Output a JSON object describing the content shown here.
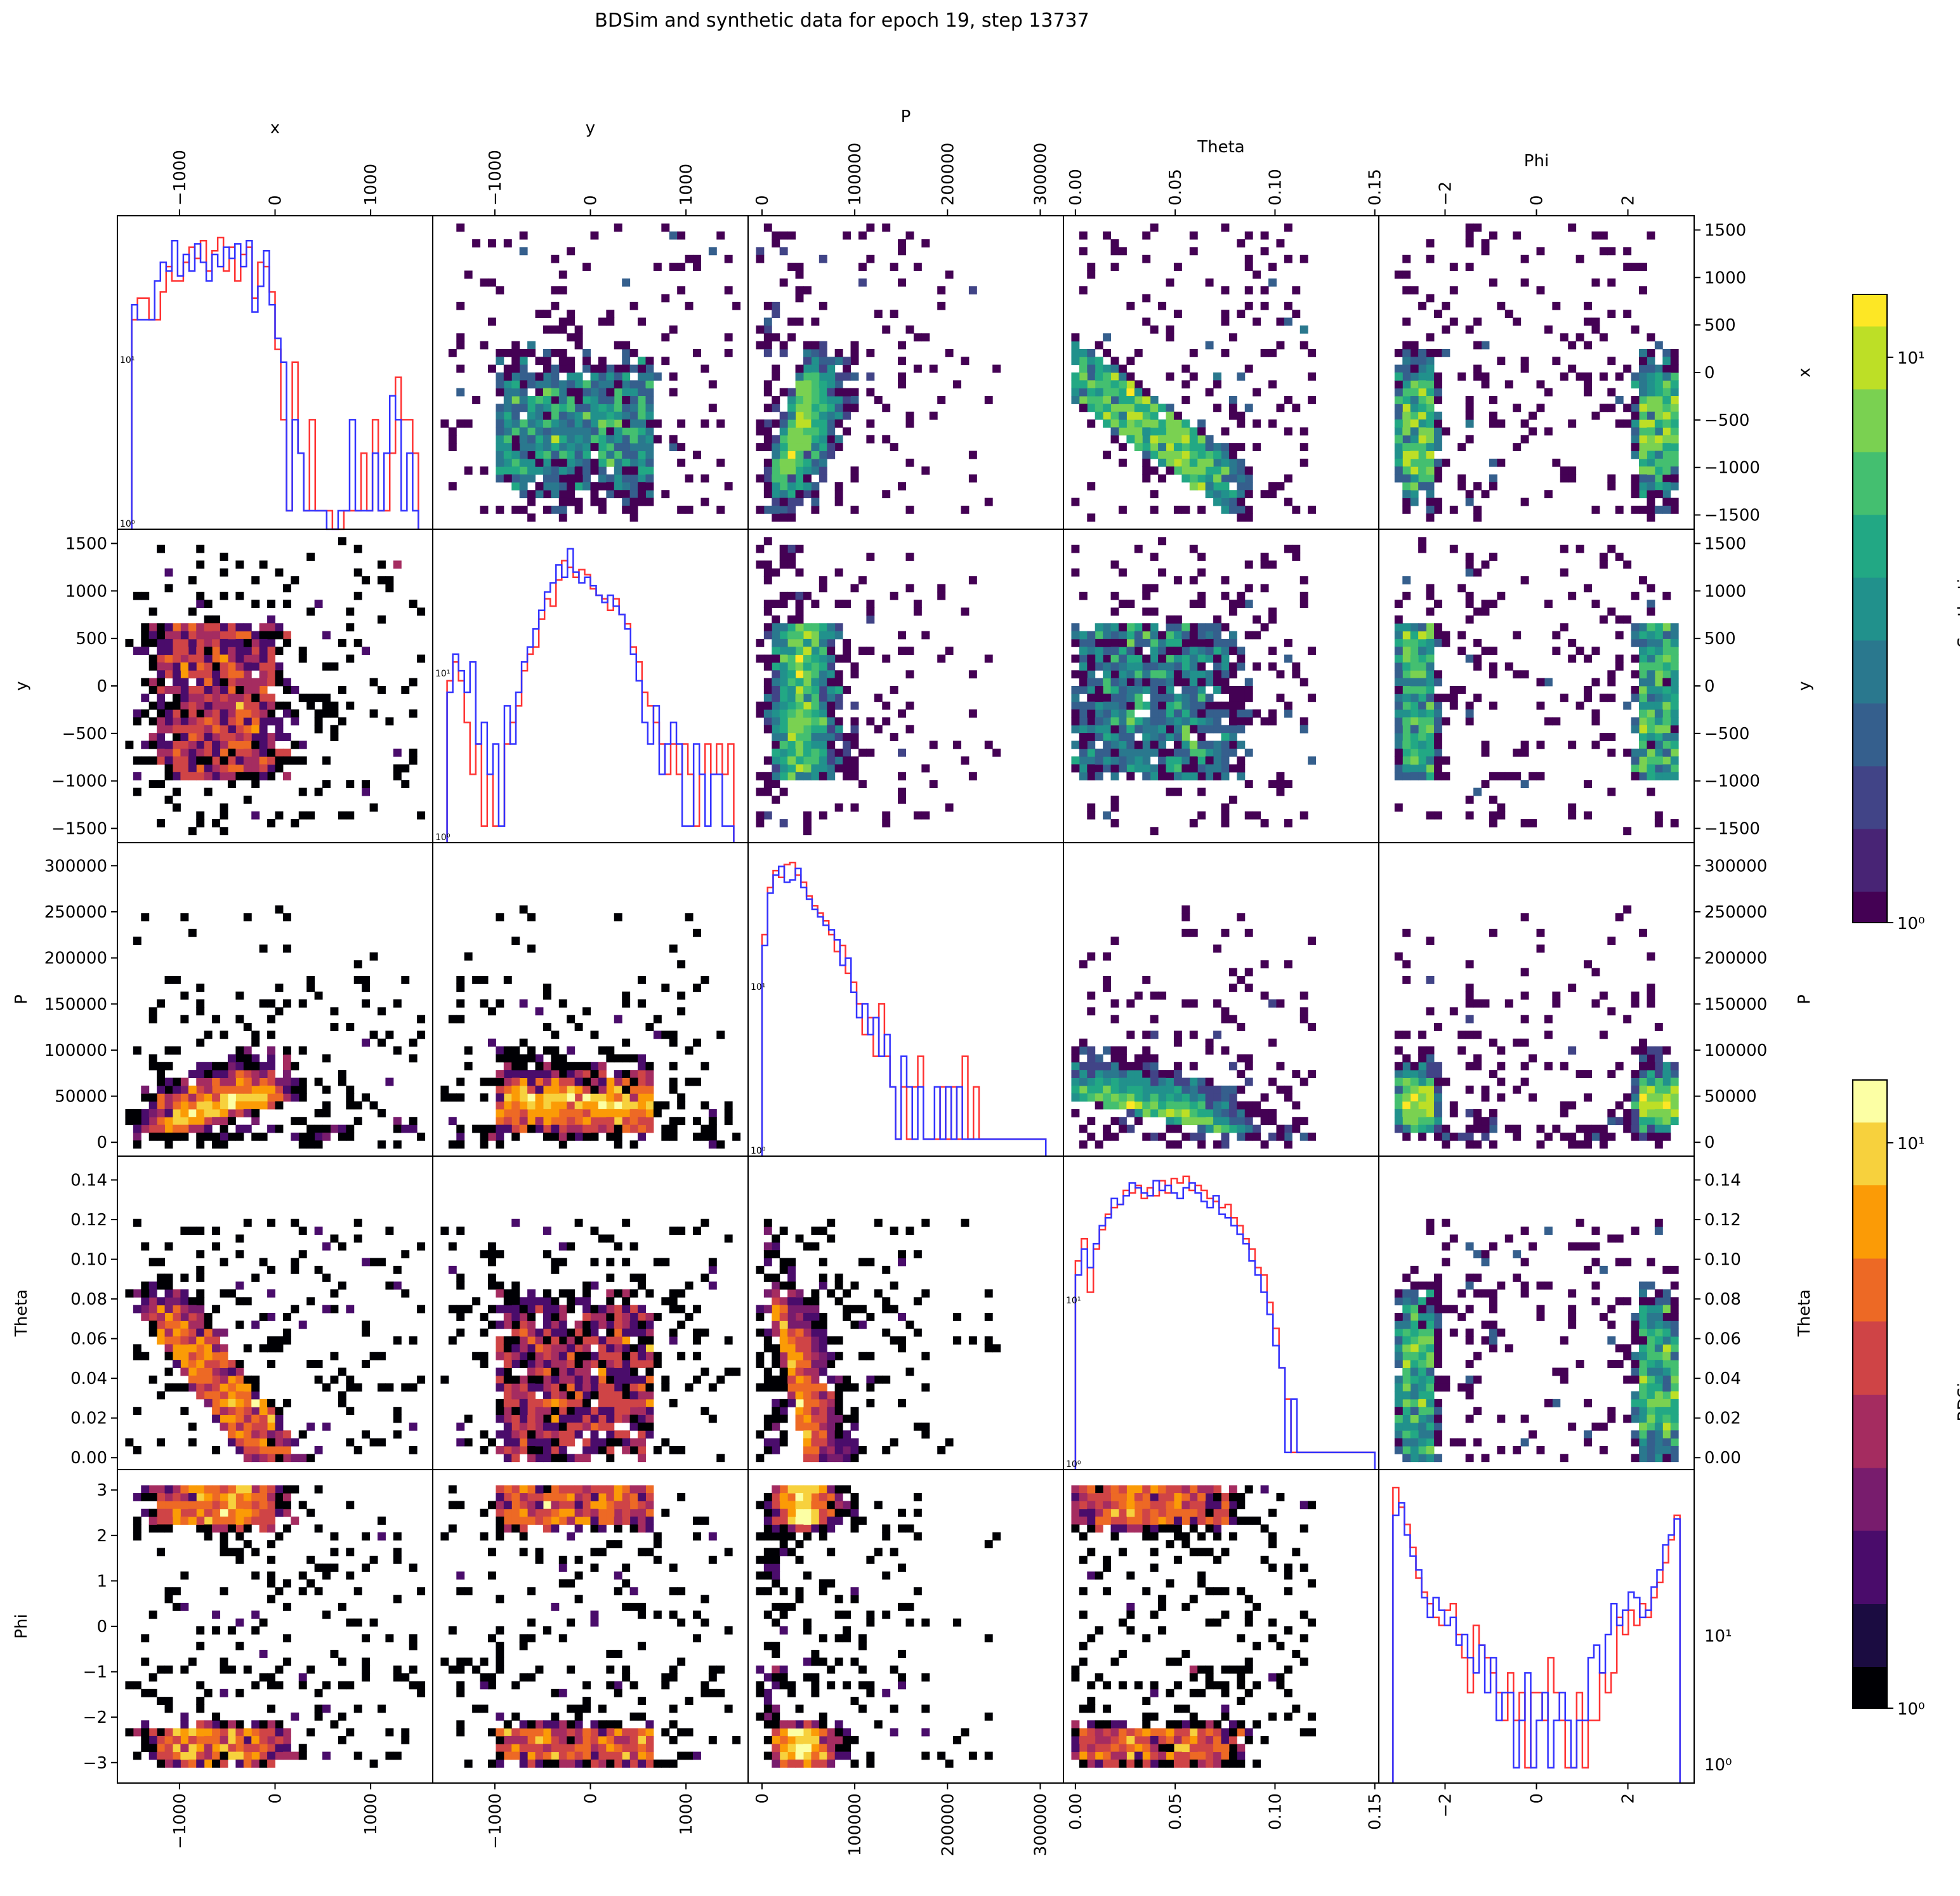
{
  "title": "BDSim and synthetic data for epoch 19, step 13737",
  "colors": {
    "synthetic_line": "#3333ff",
    "bdsim_line": "#ff3333",
    "frame": "#000000"
  },
  "chart_data": {
    "type": "heatmap",
    "variables": [
      "x",
      "y",
      "P",
      "Theta",
      "Phi"
    ],
    "variable_labels": [
      "x",
      "y",
      "P",
      "Theta",
      "Phi"
    ],
    "ranges": {
      "x": [
        -1650,
        1650
      ],
      "y": [
        -1650,
        1650
      ],
      "P": [
        -15000,
        325000
      ],
      "Theta": [
        -0.006,
        0.152
      ],
      "Phi": [
        -3.45,
        3.45
      ]
    },
    "ticks": {
      "x": [
        -1000,
        0,
        1000
      ],
      "y": [
        -1000,
        0,
        1000
      ],
      "P": [
        0,
        100000,
        200000,
        300000
      ],
      "Theta": [
        0.0,
        0.05,
        0.1,
        0.15
      ],
      "Phi": [
        -2,
        0,
        2
      ]
    },
    "tick_labels": {
      "x": [
        "−1000",
        "0",
        "1000"
      ],
      "y": [
        "−1000",
        "0",
        "1000"
      ],
      "P": [
        "0",
        "100000",
        "200000",
        "300000"
      ],
      "Theta": [
        "0.00",
        "0.05",
        "0.10",
        "0.15"
      ],
      "Phi": [
        "−2",
        "0",
        "2"
      ]
    },
    "row_ticks": {
      "x": [
        -1500,
        -1000,
        -500,
        0,
        500,
        1000,
        1500
      ],
      "y": [
        -1500,
        -1000,
        -500,
        0,
        500,
        1000,
        1500
      ],
      "P": [
        0,
        50000,
        100000,
        150000,
        200000,
        250000,
        300000
      ],
      "Theta": [
        0.0,
        0.02,
        0.04,
        0.06,
        0.08,
        0.1,
        0.12,
        0.14
      ],
      "Phi": [
        -3,
        -2,
        -1,
        0,
        1,
        2,
        3
      ]
    },
    "row_tick_labels": {
      "x": [
        "−1500",
        "−1000",
        "−500",
        "0",
        "500",
        "1000",
        "1500"
      ],
      "y": [
        "−1500",
        "−1000",
        "−500",
        "0",
        "500",
        "1000",
        "1500"
      ],
      "P": [
        "0",
        "50000",
        "100000",
        "150000",
        "200000",
        "250000",
        "300000"
      ],
      "Theta": [
        "0.00",
        "0.02",
        "0.04",
        "0.06",
        "0.08",
        "0.10",
        "0.12",
        "0.14"
      ],
      "Phi": [
        "−3",
        "−2",
        "−1",
        "0",
        "1",
        "2",
        "3"
      ]
    },
    "upper_triangle_series": "Synthetic",
    "lower_triangle_series": "BDSim",
    "diagonal": {
      "type": "histogram",
      "y_scale": "log",
      "series": [
        {
          "name": "BDSim",
          "color": "#ff3333"
        },
        {
          "name": "Synthetic",
          "color": "#3333ff"
        }
      ],
      "x_hist": {
        "bins": [
          -1500,
          -1440,
          -1380,
          -1320,
          -1260,
          -1200,
          -1140,
          -1080,
          -1020,
          -960,
          -900,
          -840,
          -780,
          -720,
          -660,
          -600,
          -540,
          -480,
          -420,
          -360,
          -300,
          -240,
          -180,
          -120,
          -60,
          0,
          60,
          120,
          180,
          240,
          300,
          360,
          420,
          480,
          540,
          600,
          660,
          720,
          780,
          840,
          900,
          960,
          1020,
          1080,
          1140,
          1200,
          1260,
          1320,
          1380,
          1440,
          1500
        ],
        "bdsim": [
          10,
          13,
          13,
          10,
          10,
          14,
          19,
          16,
          16,
          20,
          24,
          21,
          26,
          18,
          23,
          27,
          18,
          24,
          16,
          22,
          24,
          13,
          20,
          19,
          14,
          7,
          3,
          1,
          6,
          2,
          1,
          3,
          1,
          1,
          1,
          0,
          0,
          1,
          1,
          1,
          2,
          1,
          3,
          1,
          1,
          2,
          5,
          3,
          3,
          2
        ],
        "synthetic": [
          12,
          10,
          10,
          10,
          16,
          20,
          18,
          26,
          17,
          22,
          18,
          25,
          20,
          16,
          22,
          19,
          24,
          21,
          25,
          19,
          26,
          11,
          15,
          23,
          12,
          8,
          6,
          1,
          3,
          2,
          1,
          1,
          1,
          1,
          0,
          0,
          1,
          1,
          3,
          1,
          1,
          1,
          2,
          1,
          2,
          4,
          3,
          1,
          2,
          1
        ]
      },
      "y_hist": {
        "bins": [
          -1500,
          -1440,
          -1380,
          -1320,
          -1260,
          -1200,
          -1140,
          -1080,
          -1020,
          -960,
          -900,
          -840,
          -780,
          -720,
          -660,
          -600,
          -540,
          -480,
          -420,
          -360,
          -300,
          -240,
          -180,
          -120,
          -60,
          0,
          60,
          120,
          180,
          240,
          300,
          360,
          420,
          480,
          540,
          600,
          660,
          720,
          780,
          840,
          900,
          960,
          1020,
          1080,
          1140,
          1200,
          1260,
          1320,
          1380,
          1440,
          1500
        ],
        "bdsim": [
          7,
          9,
          7,
          4,
          2,
          3,
          1,
          2,
          1,
          1,
          3,
          4,
          5,
          8,
          10,
          11,
          16,
          21,
          19,
          27,
          35,
          32,
          28,
          31,
          29,
          24,
          22,
          21,
          18,
          21,
          17,
          15,
          11,
          9,
          6,
          5,
          4,
          3,
          2,
          3,
          2,
          3,
          2,
          1,
          2,
          3,
          2,
          3,
          2,
          3
        ],
        "synthetic": [
          6,
          10,
          8,
          6,
          9,
          3,
          4,
          2,
          3,
          1,
          5,
          3,
          6,
          9,
          11,
          14,
          18,
          23,
          26,
          33,
          28,
          41,
          30,
          26,
          28,
          25,
          22,
          20,
          22,
          19,
          17,
          14,
          10,
          7,
          4,
          3,
          5,
          2,
          3,
          4,
          3,
          1,
          1,
          3,
          2,
          1,
          2,
          2,
          1,
          1
        ]
      },
      "P_hist": {
        "bins": [
          0,
          6000,
          12000,
          18000,
          24000,
          30000,
          36000,
          42000,
          48000,
          54000,
          60000,
          66000,
          72000,
          78000,
          84000,
          90000,
          96000,
          102000,
          108000,
          114000,
          120000,
          126000,
          132000,
          138000,
          144000,
          150000,
          156000,
          162000,
          168000,
          174000,
          180000,
          186000,
          192000,
          198000,
          204000,
          210000,
          216000,
          222000,
          228000,
          234000,
          240000,
          246000,
          252000,
          258000,
          264000,
          270000,
          276000,
          282000,
          288000,
          294000,
          300000,
          306000
        ],
        "bdsim": [
          15,
          28,
          35,
          32,
          38,
          39,
          33,
          30,
          25,
          22,
          20,
          18,
          15,
          12,
          13,
          9,
          8,
          6,
          4,
          5,
          3,
          6,
          3,
          2,
          1,
          2,
          1,
          2,
          3,
          1,
          1,
          1,
          2,
          1,
          2,
          1,
          3,
          1,
          2,
          1,
          1,
          1,
          1,
          1,
          1,
          1,
          1,
          1,
          1,
          1,
          1
        ],
        "synthetic": [
          13,
          26,
          33,
          37,
          30,
          31,
          36,
          28,
          24,
          21,
          19,
          17,
          16,
          14,
          10,
          11,
          7,
          5,
          6,
          4,
          5,
          3,
          4,
          2,
          1,
          3,
          2,
          1,
          2,
          1,
          1,
          2,
          1,
          2,
          1,
          2,
          1,
          1,
          1,
          1,
          1,
          1,
          1,
          1,
          1,
          1,
          1,
          1,
          1,
          1,
          1
        ]
      },
      "Theta_hist": {
        "bins": [
          0,
          0.003,
          0.006,
          0.009,
          0.012,
          0.015,
          0.018,
          0.021,
          0.024,
          0.027,
          0.03,
          0.033,
          0.036,
          0.039,
          0.042,
          0.045,
          0.048,
          0.051,
          0.054,
          0.057,
          0.06,
          0.063,
          0.066,
          0.069,
          0.072,
          0.075,
          0.078,
          0.081,
          0.084,
          0.087,
          0.09,
          0.093,
          0.096,
          0.099,
          0.102,
          0.105,
          0.108,
          0.111,
          0.114,
          0.117,
          0.12,
          0.123,
          0.126,
          0.129,
          0.132,
          0.135,
          0.138,
          0.141,
          0.144,
          0.147,
          0.15
        ],
        "bdsim": [
          12,
          16,
          8,
          14,
          18,
          22,
          24,
          25,
          30,
          29,
          32,
          27,
          31,
          28,
          34,
          29,
          35,
          33,
          36,
          30,
          32,
          30,
          27,
          26,
          24,
          25,
          21,
          19,
          16,
          14,
          11,
          10,
          7,
          5,
          3,
          2,
          1,
          1,
          1,
          1,
          1,
          1,
          1,
          1,
          1,
          1,
          1,
          1,
          1,
          1
        ],
        "synthetic": [
          10,
          14,
          11,
          15,
          19,
          21,
          27,
          25,
          28,
          33,
          31,
          29,
          28,
          34,
          30,
          32,
          29,
          27,
          31,
          33,
          29,
          26,
          24,
          28,
          22,
          21,
          19,
          17,
          15,
          12,
          10,
          8,
          6,
          4,
          3,
          1,
          2,
          1,
          1,
          1,
          1,
          1,
          1,
          1,
          1,
          1,
          1,
          1,
          1,
          1
        ]
      },
      "Phi_hist": {
        "bins": [
          -3.14,
          -3.0144,
          -2.8888,
          -2.7632,
          -2.6376,
          -2.512,
          -2.3864,
          -2.2608,
          -2.1352,
          -2.0096,
          -1.884,
          -1.7584,
          -1.6328,
          -1.5072,
          -1.3816,
          -1.256,
          -1.1304,
          -1.0048,
          -0.8792,
          -0.7536,
          -0.628,
          -0.5024,
          -0.3768,
          -0.2512,
          -0.1256,
          0,
          0.1256,
          0.2512,
          0.3768,
          0.5024,
          0.628,
          0.7536,
          0.8792,
          1.0048,
          1.1304,
          1.256,
          1.3816,
          1.5072,
          1.6328,
          1.7584,
          1.884,
          2.0096,
          2.1352,
          2.2608,
          2.3864,
          2.512,
          2.6376,
          2.7632,
          2.8888,
          3.0144,
          3.14
        ],
        "bdsim": [
          60,
          45,
          35,
          25,
          16,
          13,
          11,
          9,
          8,
          10,
          11,
          7,
          5,
          3,
          8,
          6,
          5,
          4,
          3,
          2,
          4,
          2,
          3,
          1,
          3,
          3,
          2,
          5,
          3,
          2,
          1,
          1,
          3,
          1,
          2,
          2,
          4,
          3,
          4,
          9,
          7,
          10,
          8,
          11,
          9,
          12,
          15,
          20,
          28,
          40
        ],
        "synthetic": [
          40,
          48,
          30,
          22,
          18,
          12,
          9,
          12,
          10,
          8,
          9,
          6,
          7,
          5,
          4,
          6,
          3,
          5,
          2,
          3,
          3,
          1,
          2,
          4,
          1,
          2,
          3,
          1,
          2,
          3,
          2,
          1,
          2,
          2,
          5,
          6,
          4,
          7,
          11,
          8,
          10,
          13,
          12,
          9,
          10,
          14,
          18,
          26,
          30,
          38
        ]
      }
    },
    "colorbars": [
      {
        "label": "Synthetic",
        "colormap": "viridis",
        "scale": "log",
        "range": [
          1,
          15
        ],
        "tick_labels": [
          "10⁰",
          "10¹"
        ]
      },
      {
        "label": "BDSim",
        "colormap": "inferno",
        "scale": "log",
        "range": [
          1,
          15
        ],
        "tick_labels": [
          "10⁰",
          "10¹"
        ]
      }
    ],
    "diagonal_tick_labels": {
      "x": [
        "10¹",
        "10⁰"
      ],
      "y": [
        "10¹",
        "10⁰"
      ],
      "P": [
        "10¹",
        "10⁰"
      ],
      "Theta": [
        "10¹",
        "10⁰"
      ],
      "Phi": [
        "10¹",
        "10⁰"
      ]
    },
    "grid": false,
    "legend": "none"
  }
}
